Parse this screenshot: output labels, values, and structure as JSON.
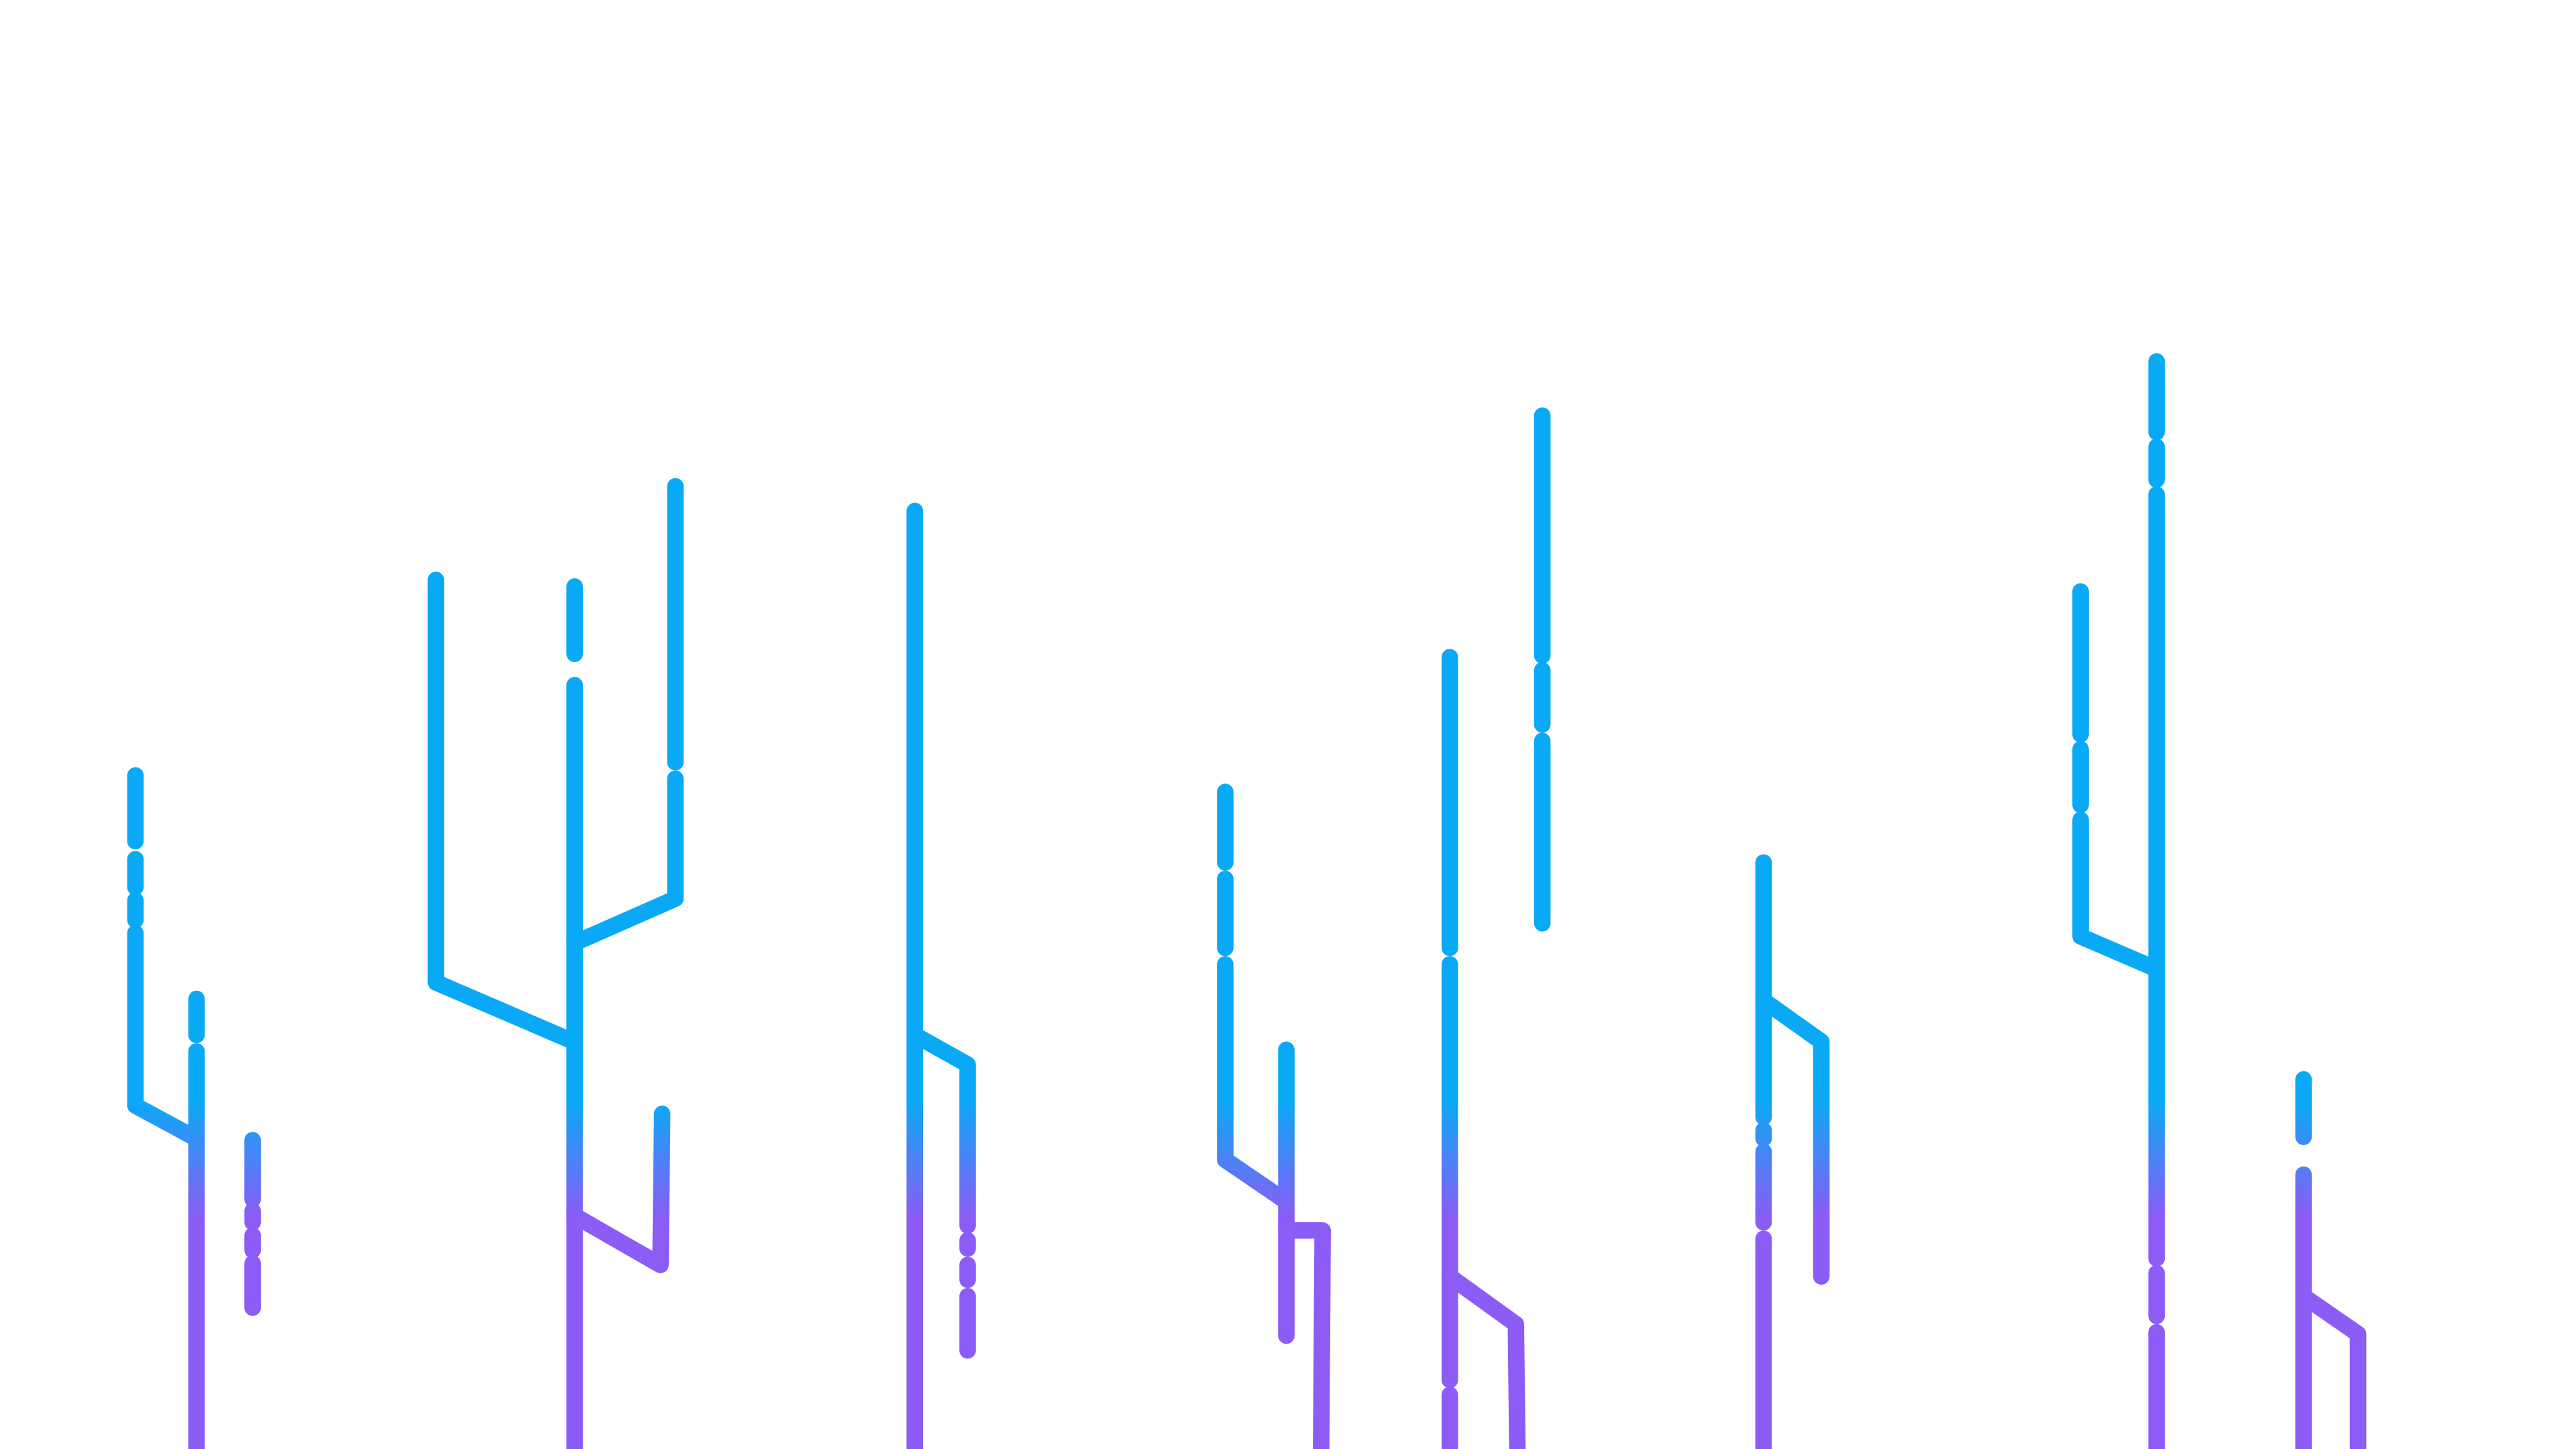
{
  "background_color": "#ffffff",
  "colors": {
    "top": "#0aa9f5",
    "bottom": "#8b5cf6"
  },
  "icon_names": [
    "circuit-trace-decoration"
  ]
}
